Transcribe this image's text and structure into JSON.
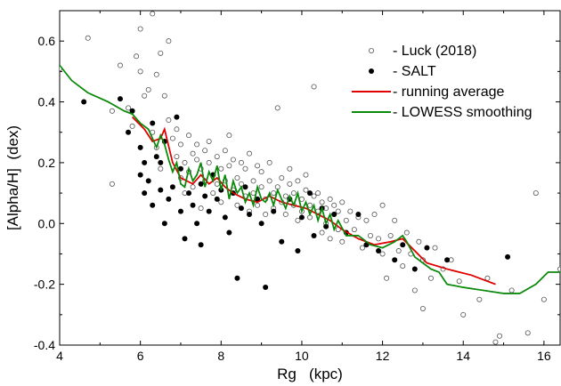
{
  "chart_data": {
    "type": "scatter",
    "xlabel": "Rg   (kpc)",
    "ylabel": "[Alpha/H]  (dex)",
    "xlim": [
      4,
      16.4
    ],
    "ylim": [
      -0.4,
      0.7
    ],
    "xticks": [
      4,
      6,
      8,
      10,
      12,
      14,
      16
    ],
    "yticks": [
      -0.4,
      -0.2,
      0.0,
      0.2,
      0.4,
      0.6
    ],
    "ytick_labels": [
      "-0.4",
      "-0.2",
      "0.0",
      "0.2",
      "0.4",
      "0.6"
    ],
    "grid": false,
    "legend_position": "top-right",
    "legend": [
      {
        "label": "- Luck (2018)",
        "marker": "open-circle",
        "color": "#000000"
      },
      {
        "label": "- SALT",
        "marker": "filled-circle",
        "color": "#000000"
      },
      {
        "label": "- running average",
        "marker": "line",
        "color": "#e00000"
      },
      {
        "label": "- LOWESS smoothing",
        "marker": "line",
        "color": "#0a8a0a"
      }
    ],
    "series": [
      {
        "name": "Luck (2018)",
        "kind": "scatter-open",
        "color": "#555555",
        "points": [
          [
            4.0,
            0.51
          ],
          [
            4.7,
            0.61
          ],
          [
            5.3,
            0.13
          ],
          [
            5.3,
            0.37
          ],
          [
            5.5,
            0.52
          ],
          [
            5.7,
            0.38
          ],
          [
            5.8,
            0.32
          ],
          [
            5.9,
            0.55
          ],
          [
            6.0,
            0.64
          ],
          [
            6.0,
            0.5
          ],
          [
            6.1,
            0.42
          ],
          [
            6.2,
            0.44
          ],
          [
            6.3,
            0.69
          ],
          [
            6.3,
            0.3
          ],
          [
            6.4,
            0.25
          ],
          [
            6.4,
            0.49
          ],
          [
            6.5,
            0.18
          ],
          [
            6.5,
            0.56
          ],
          [
            6.6,
            0.42
          ],
          [
            6.7,
            0.6
          ],
          [
            6.7,
            0.34
          ],
          [
            6.8,
            0.28
          ],
          [
            6.9,
            0.22
          ],
          [
            6.9,
            0.31
          ],
          [
            7.0,
            0.15
          ],
          [
            7.0,
            0.26
          ],
          [
            7.1,
            0.2
          ],
          [
            7.1,
            0.1
          ],
          [
            7.2,
            0.17
          ],
          [
            7.2,
            0.29
          ],
          [
            7.3,
            0.23
          ],
          [
            7.3,
            0.12
          ],
          [
            7.4,
            0.21
          ],
          [
            7.4,
            0.26
          ],
          [
            7.5,
            0.18
          ],
          [
            7.5,
            0.05
          ],
          [
            7.6,
            0.14
          ],
          [
            7.6,
            0.24
          ],
          [
            7.7,
            0.2
          ],
          [
            7.7,
            0.27
          ],
          [
            7.8,
            0.1
          ],
          [
            7.8,
            0.16
          ],
          [
            7.9,
            0.22
          ],
          [
            7.9,
            0.13
          ],
          [
            8.0,
            0.18
          ],
          [
            8.0,
            0.07
          ],
          [
            8.1,
            0.24
          ],
          [
            8.1,
            0.14
          ],
          [
            8.2,
            0.19
          ],
          [
            8.2,
            0.29
          ],
          [
            8.3,
            0.11
          ],
          [
            8.3,
            0.21
          ],
          [
            8.4,
            0.15
          ],
          [
            8.4,
            0.06
          ],
          [
            8.5,
            0.2
          ],
          [
            8.5,
            0.13
          ],
          [
            8.6,
            0.09
          ],
          [
            8.6,
            0.18
          ],
          [
            8.7,
            0.23
          ],
          [
            8.7,
            0.04
          ],
          [
            8.8,
            0.14
          ],
          [
            8.8,
            0.1
          ],
          [
            8.9,
            0.19
          ],
          [
            8.9,
            0.06
          ],
          [
            9.0,
            0.12
          ],
          [
            9.0,
            0.17
          ],
          [
            9.1,
            0.08
          ],
          [
            9.1,
            0.03
          ],
          [
            9.2,
            0.14
          ],
          [
            9.2,
            0.2
          ],
          [
            9.3,
            0.1
          ],
          [
            9.3,
            0.05
          ],
          [
            9.4,
            0.38
          ],
          [
            9.4,
            0.12
          ],
          [
            9.5,
            0.07
          ],
          [
            9.5,
            0.15
          ],
          [
            9.6,
            0.09
          ],
          [
            9.6,
            0.03
          ],
          [
            9.7,
            0.13
          ],
          [
            9.7,
            0.18
          ],
          [
            9.8,
            0.06
          ],
          [
            9.8,
            0.1
          ],
          [
            9.9,
            0.01
          ],
          [
            9.9,
            0.14
          ],
          [
            10.0,
            0.08
          ],
          [
            10.0,
            0.04
          ],
          [
            10.1,
            0.11
          ],
          [
            10.1,
            0.16
          ],
          [
            10.2,
            0.06
          ],
          [
            10.2,
            0.02
          ],
          [
            10.3,
            0.09
          ],
          [
            10.3,
            0.45
          ],
          [
            10.4,
            0.04
          ],
          [
            10.4,
            0.1
          ],
          [
            10.5,
            -0.03
          ],
          [
            10.5,
            0.07
          ],
          [
            10.6,
            0.0
          ],
          [
            10.6,
            0.05
          ],
          [
            10.7,
            0.08
          ],
          [
            10.7,
            -0.05
          ],
          [
            10.8,
            0.03
          ],
          [
            10.8,
            0.06
          ],
          [
            10.9,
            -0.02
          ],
          [
            10.9,
            0.04
          ],
          [
            11.0,
            0.07
          ],
          [
            11.0,
            -0.06
          ],
          [
            11.1,
            0.01
          ],
          [
            11.2,
            0.04
          ],
          [
            11.3,
            -0.02
          ],
          [
            11.4,
            0.02
          ],
          [
            11.5,
            -0.08
          ],
          [
            11.6,
            0.01
          ],
          [
            11.7,
            -0.04
          ],
          [
            11.8,
            0.03
          ],
          [
            11.9,
            -0.05
          ],
          [
            12.0,
            0.06
          ],
          [
            12.0,
            -0.1
          ],
          [
            12.1,
            -0.18
          ],
          [
            12.2,
            -0.04
          ],
          [
            12.3,
            0.01
          ],
          [
            12.4,
            -0.09
          ],
          [
            12.5,
            -0.14
          ],
          [
            12.6,
            -0.03
          ],
          [
            12.7,
            -0.1
          ],
          [
            12.8,
            -0.22
          ],
          [
            12.9,
            -0.06
          ],
          [
            13.0,
            -0.28
          ],
          [
            13.0,
            -0.12
          ],
          [
            13.2,
            -0.18
          ],
          [
            13.3,
            -0.08
          ],
          [
            13.5,
            -0.15
          ],
          [
            13.7,
            -0.12
          ],
          [
            13.9,
            -0.19
          ],
          [
            14.0,
            -0.3
          ],
          [
            14.4,
            -0.25
          ],
          [
            14.6,
            -0.18
          ],
          [
            14.8,
            -0.39
          ],
          [
            14.9,
            -0.37
          ],
          [
            15.2,
            -0.22
          ],
          [
            15.6,
            -0.36
          ],
          [
            15.8,
            0.1
          ],
          [
            16.0,
            -0.25
          ],
          [
            16.4,
            -0.15
          ]
        ]
      },
      {
        "name": "SALT",
        "kind": "scatter-filled",
        "color": "#000000",
        "points": [
          [
            4.6,
            0.4
          ],
          [
            5.5,
            0.41
          ],
          [
            5.7,
            0.3
          ],
          [
            5.8,
            0.37
          ],
          [
            6.0,
            0.25
          ],
          [
            6.0,
            0.16
          ],
          [
            6.1,
            0.2
          ],
          [
            6.1,
            0.1
          ],
          [
            6.2,
            0.14
          ],
          [
            6.3,
            0.33
          ],
          [
            6.3,
            0.06
          ],
          [
            6.4,
            0.22
          ],
          [
            6.5,
            0.2
          ],
          [
            6.5,
            0.11
          ],
          [
            6.6,
            0.27
          ],
          [
            6.6,
            0.0
          ],
          [
            6.7,
            0.08
          ],
          [
            6.8,
            0.12
          ],
          [
            6.9,
            0.35
          ],
          [
            7.0,
            0.04
          ],
          [
            7.0,
            0.18
          ],
          [
            7.1,
            -0.05
          ],
          [
            7.2,
            0.1
          ],
          [
            7.3,
            0.06
          ],
          [
            7.4,
            0.0
          ],
          [
            7.5,
            0.13
          ],
          [
            7.5,
            -0.07
          ],
          [
            7.6,
            0.09
          ],
          [
            7.7,
            0.04
          ],
          [
            7.8,
            0.16
          ],
          [
            7.9,
            0.08
          ],
          [
            8.0,
            0.11
          ],
          [
            8.1,
            0.02
          ],
          [
            8.2,
            -0.03
          ],
          [
            8.3,
            0.1
          ],
          [
            8.4,
            -0.18
          ],
          [
            8.5,
            0.05
          ],
          [
            8.6,
            0.12
          ],
          [
            8.7,
            0.03
          ],
          [
            8.9,
            0.08
          ],
          [
            9.0,
            0.0
          ],
          [
            9.1,
            -0.21
          ],
          [
            9.3,
            0.04
          ],
          [
            9.5,
            -0.06
          ],
          [
            9.7,
            0.08
          ],
          [
            9.9,
            -0.09
          ],
          [
            10.0,
            0.02
          ],
          [
            10.2,
            0.1
          ],
          [
            10.3,
            -0.04
          ],
          [
            10.5,
            0.05
          ],
          [
            10.6,
            -0.01
          ],
          [
            10.8,
            0.03
          ],
          [
            11.1,
            -0.03
          ],
          [
            11.4,
            0.03
          ],
          [
            11.6,
            -0.07
          ],
          [
            11.9,
            -0.09
          ],
          [
            12.3,
            -0.12
          ],
          [
            12.5,
            -0.07
          ],
          [
            12.8,
            -0.15
          ],
          [
            13.1,
            -0.08
          ],
          [
            13.6,
            -0.12
          ],
          [
            15.1,
            -0.11
          ]
        ]
      },
      {
        "name": "running average",
        "kind": "line",
        "color": "#e00000",
        "points": [
          [
            5.8,
            0.35
          ],
          [
            6.1,
            0.31
          ],
          [
            6.3,
            0.27
          ],
          [
            6.5,
            0.28
          ],
          [
            6.6,
            0.31
          ],
          [
            6.8,
            0.2
          ],
          [
            7.0,
            0.15
          ],
          [
            7.3,
            0.13
          ],
          [
            7.5,
            0.16
          ],
          [
            7.7,
            0.13
          ],
          [
            7.9,
            0.15
          ],
          [
            8.1,
            0.12
          ],
          [
            8.3,
            0.1
          ],
          [
            8.6,
            0.08
          ],
          [
            8.9,
            0.07
          ],
          [
            9.2,
            0.09
          ],
          [
            9.5,
            0.07
          ],
          [
            9.8,
            0.06
          ],
          [
            10.1,
            0.05
          ],
          [
            10.4,
            0.03
          ],
          [
            10.7,
            0.01
          ],
          [
            11.0,
            -0.02
          ],
          [
            11.4,
            -0.05
          ],
          [
            11.8,
            -0.07
          ],
          [
            12.2,
            -0.06
          ],
          [
            12.5,
            -0.05
          ],
          [
            12.8,
            -0.09
          ],
          [
            13.1,
            -0.13
          ],
          [
            13.6,
            -0.15
          ],
          [
            14.2,
            -0.17
          ],
          [
            14.8,
            -0.2
          ]
        ]
      },
      {
        "name": "LOWESS smoothing",
        "kind": "line",
        "color": "#0a8a0a",
        "points": [
          [
            4.0,
            0.52
          ],
          [
            4.3,
            0.47
          ],
          [
            4.7,
            0.43
          ],
          [
            5.2,
            0.4
          ],
          [
            5.6,
            0.37
          ],
          [
            5.8,
            0.36
          ],
          [
            6.0,
            0.33
          ],
          [
            6.2,
            0.31
          ],
          [
            6.3,
            0.28
          ],
          [
            6.4,
            0.25
          ],
          [
            6.5,
            0.29
          ],
          [
            6.6,
            0.26
          ],
          [
            6.7,
            0.21
          ],
          [
            6.8,
            0.17
          ],
          [
            6.9,
            0.2
          ],
          [
            7.0,
            0.13
          ],
          [
            7.1,
            0.12
          ],
          [
            7.2,
            0.18
          ],
          [
            7.3,
            0.14
          ],
          [
            7.4,
            0.16
          ],
          [
            7.5,
            0.2
          ],
          [
            7.6,
            0.12
          ],
          [
            7.7,
            0.17
          ],
          [
            7.8,
            0.14
          ],
          [
            7.9,
            0.19
          ],
          [
            8.0,
            0.11
          ],
          [
            8.1,
            0.16
          ],
          [
            8.2,
            0.08
          ],
          [
            8.3,
            0.14
          ],
          [
            8.4,
            0.1
          ],
          [
            8.5,
            0.12
          ],
          [
            8.6,
            0.07
          ],
          [
            8.7,
            0.1
          ],
          [
            8.8,
            0.06
          ],
          [
            8.9,
            0.12
          ],
          [
            9.0,
            0.08
          ],
          [
            9.1,
            0.07
          ],
          [
            9.2,
            0.1
          ],
          [
            9.3,
            0.06
          ],
          [
            9.4,
            0.11
          ],
          [
            9.5,
            0.08
          ],
          [
            9.6,
            0.05
          ],
          [
            9.7,
            0.09
          ],
          [
            9.8,
            0.06
          ],
          [
            9.9,
            0.1
          ],
          [
            10.0,
            0.04
          ],
          [
            10.1,
            0.07
          ],
          [
            10.2,
            0.03
          ],
          [
            10.3,
            0.06
          ],
          [
            10.4,
            0.01
          ],
          [
            10.5,
            0.05
          ],
          [
            10.6,
            0.0
          ],
          [
            10.7,
            0.03
          ],
          [
            10.8,
            -0.02
          ],
          [
            10.9,
            0.01
          ],
          [
            11.1,
            -0.04
          ],
          [
            11.4,
            -0.04
          ],
          [
            11.7,
            -0.07
          ],
          [
            12.0,
            -0.08
          ],
          [
            12.3,
            -0.06
          ],
          [
            12.5,
            -0.04
          ],
          [
            12.6,
            -0.06
          ],
          [
            12.8,
            -0.11
          ],
          [
            13.0,
            -0.13
          ],
          [
            13.2,
            -0.15
          ],
          [
            13.4,
            -0.16
          ],
          [
            13.6,
            -0.2
          ],
          [
            14.0,
            -0.21
          ],
          [
            14.5,
            -0.22
          ],
          [
            15.0,
            -0.23
          ],
          [
            15.4,
            -0.23
          ],
          [
            15.8,
            -0.2
          ],
          [
            16.1,
            -0.16
          ],
          [
            16.4,
            -0.16
          ]
        ]
      }
    ]
  }
}
